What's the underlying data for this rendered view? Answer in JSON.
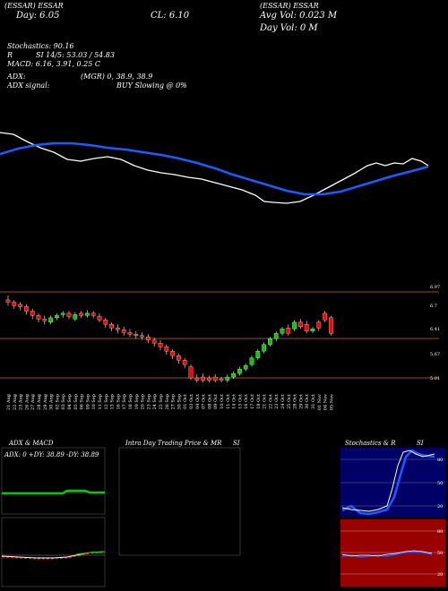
{
  "header": {
    "line1_left": "(ESSAR) ESSAR",
    "line1_right": "(ESSAR) ESSAR",
    "close": "CL: 6.10",
    "day_range": "Day: 6.05",
    "avg_vol": "Avg Vol: 0.023 M",
    "day_vol": "Day Vol: 0 M",
    "stoch": "Stochastics: 90.16",
    "stoch_r": "R",
    "rsi": "SI 14/5: 53.03 / 54.83",
    "macd": "MACD: 6.16, 3.91, 0.25 C",
    "adx": "ADX:",
    "adx_mgr": "(MGR) 0, 38.9, 38.9",
    "adx_signal": "ADX signal:",
    "buy_signal": "BUY Slowing @ 0%"
  },
  "price_axis": [
    "6.97",
    "6.7",
    "6.41",
    "5.67",
    "5.01"
  ],
  "date_labels": [
    "21 Aug",
    "22 Aug",
    "23 Aug",
    "26 Aug",
    "27 Aug",
    "28 Aug",
    "29 Aug",
    "30 Aug",
    "02 Sep",
    "03 Sep",
    "04 Sep",
    "05 Sep",
    "06 Sep",
    "09 Sep",
    "10 Sep",
    "11 Sep",
    "12 Sep",
    "13 Sep",
    "16 Sep",
    "17 Sep",
    "18 Sep",
    "19 Sep",
    "20 Sep",
    "23 Sep",
    "24 Sep",
    "25 Sep",
    "26 Sep",
    "27 Sep",
    "30 Sep",
    "01 Oct",
    "03 Oct",
    "04 Oct",
    "07 Oct",
    "08 Oct",
    "09 Oct",
    "10 Oct",
    "11 Oct",
    "14 Oct",
    "15 Oct",
    "16 Oct",
    "17 Oct",
    "18 Oct",
    "21 Oct",
    "22 Oct",
    "23 Oct",
    "24 Oct",
    "25 Oct",
    "28 Oct",
    "29 Oct",
    "30 Oct",
    "31 Oct",
    "01 Nov",
    "04 Nov",
    "05 Nov"
  ],
  "panels": {
    "adx_title": "ADX & MACD",
    "adx_values": "ADX: 0 +DY: 38.89 -DY: 38.89",
    "intra_title": "Intra Day Trading Price & MR",
    "intra_si": "SI",
    "stoch_title": "Stochastics & R",
    "stoch_si": "SI",
    "stoch_ticks": [
      "80",
      "50",
      "20"
    ],
    "rsi_ticks": [
      "80",
      "50",
      "20"
    ]
  },
  "colors": {
    "bull": "#00cc00",
    "bear": "#ff0000",
    "ma_blue": "#1a5cff",
    "ma_white": "#ffffff",
    "stoch_bg": "#000066",
    "rsi_bg": "#990000"
  },
  "chart_data": {
    "type": "candlestick",
    "x_unit": "date",
    "ylim": [
      4.9,
      7.05
    ],
    "candles": [
      [
        6.85,
        6.8,
        6.95,
        6.72
      ],
      [
        6.8,
        6.72,
        6.85,
        6.65
      ],
      [
        6.75,
        6.7,
        6.8,
        6.62
      ],
      [
        6.7,
        6.6,
        6.75,
        6.52
      ],
      [
        6.6,
        6.5,
        6.65,
        6.42
      ],
      [
        6.5,
        6.42,
        6.55,
        6.35
      ],
      [
        6.42,
        6.38,
        6.5,
        6.3
      ],
      [
        6.35,
        6.45,
        6.5,
        6.3
      ],
      [
        6.45,
        6.5,
        6.55,
        6.4
      ],
      [
        6.52,
        6.55,
        6.6,
        6.45
      ],
      [
        6.55,
        6.48,
        6.6,
        6.42
      ],
      [
        6.42,
        6.52,
        6.58,
        6.38
      ],
      [
        6.55,
        6.5,
        6.6,
        6.45
      ],
      [
        6.5,
        6.55,
        6.62,
        6.45
      ],
      [
        6.55,
        6.5,
        6.6,
        6.44
      ],
      [
        6.48,
        6.4,
        6.55,
        6.35
      ],
      [
        6.4,
        6.3,
        6.45,
        6.22
      ],
      [
        6.3,
        6.22,
        6.35,
        6.15
      ],
      [
        6.22,
        6.18,
        6.3,
        6.1
      ],
      [
        6.18,
        6.12,
        6.25,
        6.05
      ],
      [
        6.12,
        6.08,
        6.2,
        6.02
      ],
      [
        6.08,
        6.05,
        6.15,
        5.98
      ],
      [
        6.05,
        6.02,
        6.12,
        5.95
      ],
      [
        6.02,
        5.95,
        6.08,
        5.88
      ],
      [
        5.95,
        5.88,
        6.0,
        5.8
      ],
      [
        5.88,
        5.8,
        5.95,
        5.72
      ],
      [
        5.8,
        5.7,
        5.85,
        5.62
      ],
      [
        5.7,
        5.6,
        5.75,
        5.52
      ],
      [
        5.6,
        5.5,
        5.65,
        5.42
      ],
      [
        5.5,
        5.4,
        5.55,
        5.32
      ],
      [
        5.35,
        5.1,
        5.4,
        5.05
      ],
      [
        5.1,
        5.05,
        5.18,
        5.0
      ],
      [
        5.12,
        5.05,
        5.2,
        5.0
      ],
      [
        5.1,
        5.05,
        5.15,
        5.0
      ],
      [
        5.12,
        5.05,
        5.18,
        5.0
      ],
      [
        5.08,
        5.05,
        5.12,
        5.0
      ],
      [
        5.05,
        5.12,
        5.18,
        5.0
      ],
      [
        5.12,
        5.2,
        5.25,
        5.08
      ],
      [
        5.2,
        5.3,
        5.35,
        5.15
      ],
      [
        5.3,
        5.38,
        5.42,
        5.25
      ],
      [
        5.4,
        5.55,
        5.6,
        5.35
      ],
      [
        5.55,
        5.7,
        5.75,
        5.5
      ],
      [
        5.7,
        5.85,
        5.9,
        5.65
      ],
      [
        5.85,
        5.98,
        6.02,
        5.8
      ],
      [
        5.98,
        6.1,
        6.15,
        5.92
      ],
      [
        6.1,
        6.2,
        6.25,
        6.05
      ],
      [
        6.22,
        6.1,
        6.3,
        6.05
      ],
      [
        6.2,
        6.35,
        6.4,
        6.15
      ],
      [
        6.35,
        6.25,
        6.42,
        6.2
      ],
      [
        6.3,
        6.15,
        6.38,
        6.1
      ],
      [
        6.15,
        6.2,
        6.25,
        6.1
      ],
      [
        6.35,
        6.22,
        6.4,
        6.15
      ],
      [
        6.55,
        6.4,
        6.6,
        6.35
      ],
      [
        6.45,
        6.1,
        6.5,
        6.05
      ]
    ]
  }
}
